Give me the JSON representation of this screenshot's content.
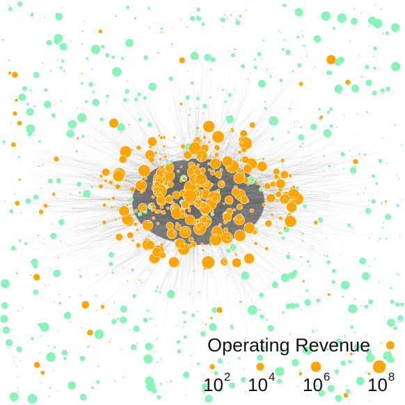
{
  "legend": {
    "title": "Operating Revenue",
    "entries": [
      {
        "base": "10",
        "exp": "2",
        "value": 100
      },
      {
        "base": "10",
        "exp": "4",
        "value": 10000
      },
      {
        "base": "10",
        "exp": "6",
        "value": 1000000
      },
      {
        "base": "10",
        "exp": "8",
        "value": 100000000
      }
    ]
  },
  "colors": {
    "node_connected": "#ffa500",
    "node_peripheral": "#86f5b6",
    "node_stroke": "#ffffff",
    "edge": "#333333",
    "background": "#ffffff"
  }
}
